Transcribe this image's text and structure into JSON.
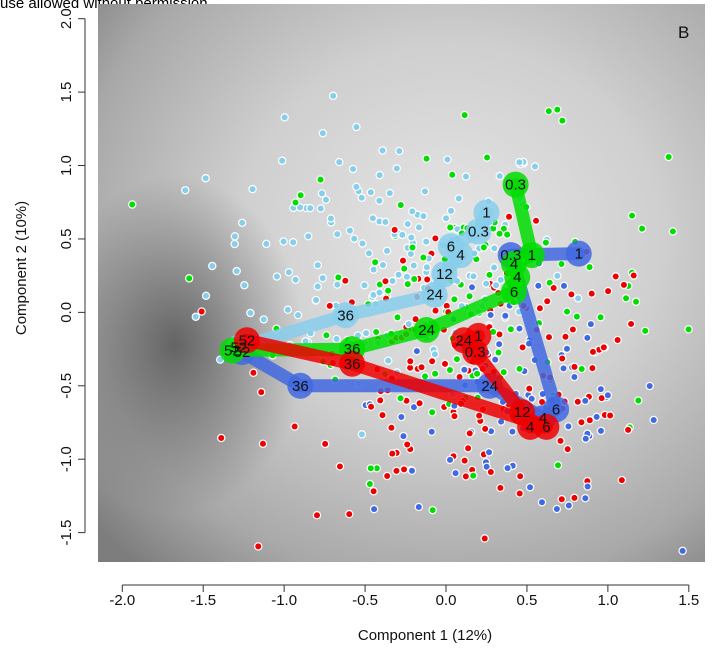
{
  "header_note": "use allowed without permission.",
  "chart_data": {
    "type": "scatter",
    "panel_label": "B",
    "xlabel": "Component 1 (12%)",
    "ylabel": "Component 2 (10%)",
    "xlim": [
      -2.15,
      1.6
    ],
    "ylim": [
      -1.7,
      2.1
    ],
    "xticks": [
      "-2.0",
      "-1.5",
      "-1.0",
      "-0.5",
      "0.0",
      "0.5",
      "1.0",
      "1.5"
    ],
    "yticks": [
      "-1.5",
      "-1.0",
      "-0.5",
      "0.0",
      "0.5",
      "1.0",
      "1.5",
      "2.0"
    ],
    "background": "grayscale density gradient",
    "grid": false,
    "colors": {
      "lightblue": "#87ceeb",
      "blue": "#4169e1",
      "green": "#00dd00",
      "red": "#ee0000",
      "point_edge": "#ffffff"
    },
    "point_cloud": {
      "lightblue": {
        "center": [
          -0.35,
          0.35
        ],
        "spread": [
          0.55,
          0.45
        ],
        "n": 170
      },
      "blue": {
        "center": [
          0.45,
          -0.6
        ],
        "spread": [
          0.45,
          0.4
        ],
        "n": 90
      },
      "green": {
        "center": [
          0.15,
          0.1
        ],
        "spread": [
          0.6,
          0.55
        ],
        "n": 120
      },
      "red": {
        "center": [
          0.2,
          -0.45
        ],
        "spread": [
          0.6,
          0.45
        ],
        "n": 170
      }
    },
    "series": [
      {
        "color": "lightblue",
        "points": [
          {
            "label": "1",
            "x": 0.25,
            "y": 0.68
          },
          {
            "label": "0.3",
            "x": 0.2,
            "y": 0.55
          },
          {
            "label": "6",
            "x": 0.03,
            "y": 0.45
          },
          {
            "label": "4",
            "x": 0.09,
            "y": 0.39
          },
          {
            "label": "12",
            "x": -0.01,
            "y": 0.26
          },
          {
            "label": "24",
            "x": -0.07,
            "y": 0.12
          },
          {
            "label": "36",
            "x": -0.62,
            "y": -0.02
          },
          {
            "label": "52",
            "x": -1.28,
            "y": -0.24
          }
        ]
      },
      {
        "color": "blue",
        "points": [
          {
            "label": "1",
            "x": 0.82,
            "y": 0.4
          },
          {
            "label": "0.3",
            "x": 0.4,
            "y": 0.39
          },
          {
            "label": "6",
            "x": 0.68,
            "y": -0.66
          },
          {
            "label": "4",
            "x": 0.6,
            "y": -0.72
          },
          {
            "label": "24",
            "x": 0.27,
            "y": -0.5
          },
          {
            "label": "36",
            "x": -0.9,
            "y": -0.5
          },
          {
            "label": "52",
            "x": -1.26,
            "y": -0.27
          }
        ]
      },
      {
        "color": "green",
        "points": [
          {
            "label": "0.3",
            "x": 0.43,
            "y": 0.87
          },
          {
            "label": "1",
            "x": 0.53,
            "y": 0.39
          },
          {
            "label": "4",
            "x": 0.42,
            "y": 0.33
          },
          {
            "label": "4",
            "x": 0.44,
            "y": 0.24
          },
          {
            "label": "6",
            "x": 0.42,
            "y": 0.14
          },
          {
            "label": "24",
            "x": -0.12,
            "y": -0.12
          },
          {
            "label": "36",
            "x": -0.58,
            "y": -0.25
          },
          {
            "label": "52",
            "x": -1.32,
            "y": -0.26
          }
        ]
      },
      {
        "color": "red",
        "points": [
          {
            "label": "1",
            "x": 0.2,
            "y": -0.16
          },
          {
            "label": "24",
            "x": 0.11,
            "y": -0.19
          },
          {
            "label": "0.3",
            "x": 0.18,
            "y": -0.27
          },
          {
            "label": "12",
            "x": 0.47,
            "y": -0.68
          },
          {
            "label": "4",
            "x": 0.52,
            "y": -0.78
          },
          {
            "label": "6",
            "x": 0.62,
            "y": -0.78
          },
          {
            "label": "36",
            "x": -0.58,
            "y": -0.35
          },
          {
            "label": "52",
            "x": -1.23,
            "y": -0.19
          }
        ]
      }
    ]
  }
}
